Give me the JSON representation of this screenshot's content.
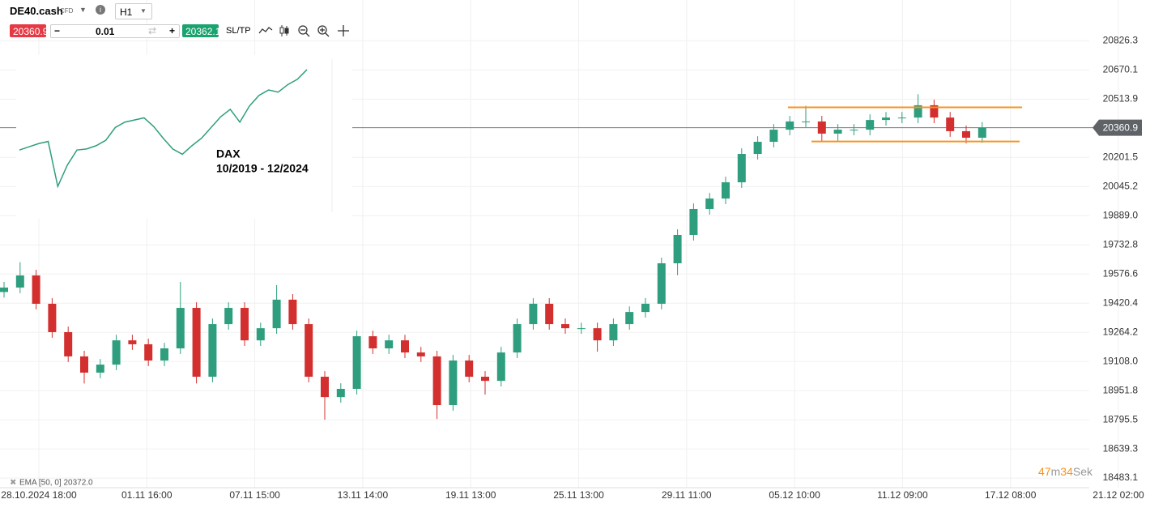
{
  "header": {
    "symbol": "DE40.cash",
    "kind": "CFD",
    "timeframe": "H1",
    "sell": "20360.9",
    "volume": "0.01",
    "buy": "20362.1",
    "sltp": "SL/TP"
  },
  "indicator": "EMA [50, 0] 20372.0",
  "timer": {
    "minutes": "47",
    "m": "m",
    "seconds": "34",
    "s": "Sek"
  },
  "inset": {
    "title": "DAX",
    "period": "10/2019 - 12/2024",
    "color": "#2e9e7e",
    "values": [
      12900,
      13200,
      13500,
      13700,
      9500,
      11500,
      12900,
      13000,
      13300,
      13800,
      15000,
      15500,
      15700,
      15900,
      15100,
      14000,
      13000,
      12500,
      13300,
      14000,
      15000,
      16000,
      16700,
      15500,
      17000,
      18000,
      18500,
      18300,
      19000,
      19500,
      20400
    ],
    "ylim": [
      8000,
      21000
    ]
  },
  "chart_data": {
    "type": "candlestick",
    "x_labels": [
      "28.10.2024 18:00",
      "01.11 16:00",
      "07.11 15:00",
      "13.11 14:00",
      "19.11 13:00",
      "25.11 13:00",
      "29.11 11:00",
      "05.12 10:00",
      "11.12 09:00",
      "17.12 08:00",
      "21.12 02:00"
    ],
    "open": [
      19480,
      19504,
      19569,
      19417,
      19265,
      19135,
      19048,
      19091,
      19221,
      19200,
      19113,
      19178,
      19395,
      19026,
      19308,
      19395,
      19221,
      19286,
      19439,
      19308,
      19026,
      18917,
      18961,
      19243,
      19178,
      19221,
      19156,
      19135,
      18874,
      19113,
      19026,
      19004,
      19156,
      19308,
      19417,
      19308,
      19286,
      19286,
      19221,
      19308,
      19373,
      19417,
      19634,
      19786,
      19925,
      19981,
      20068,
      20220,
      20285,
      20350,
      20394,
      20394,
      20329,
      20350,
      20350,
      20402,
      20415,
      20415,
      20481,
      20415,
      20342,
      20307
    ],
    "high": [
      19534,
      19640,
      19599,
      19447,
      19295,
      19165,
      19121,
      19251,
      19251,
      19230,
      19208,
      19534,
      19425,
      19338,
      19425,
      19425,
      19316,
      19517,
      19469,
      19338,
      19056,
      18991,
      19273,
      19273,
      19251,
      19251,
      19186,
      19165,
      19143,
      19143,
      19056,
      19186,
      19338,
      19447,
      19447,
      19338,
      19316,
      19316,
      19338,
      19403,
      19447,
      19664,
      19816,
      19955,
      20011,
      20098,
      20250,
      20315,
      20380,
      20424,
      20478,
      20424,
      20380,
      20380,
      20432,
      20445,
      20445,
      20540,
      20511,
      20445,
      20372,
      20391
    ],
    "low": [
      19450,
      19474,
      19387,
      19235,
      19105,
      18990,
      19018,
      19061,
      19170,
      19083,
      19083,
      19148,
      18990,
      18996,
      19278,
      19191,
      19191,
      19256,
      19278,
      18996,
      18796,
      18887,
      18931,
      19148,
      19148,
      19126,
      19105,
      18800,
      18844,
      18996,
      18930,
      18974,
      19126,
      19278,
      19278,
      19256,
      19256,
      19160,
      19191,
      19278,
      19343,
      19387,
      19570,
      19756,
      19895,
      19951,
      20038,
      20190,
      20255,
      20320,
      20364,
      20290,
      20290,
      20320,
      20320,
      20372,
      20385,
      20385,
      20385,
      20312,
      20277,
      20280
    ],
    "close": [
      19504,
      19569,
      19417,
      19265,
      19135,
      19048,
      19091,
      19221,
      19200,
      19113,
      19178,
      19395,
      19026,
      19308,
      19395,
      19221,
      19286,
      19439,
      19308,
      19026,
      18917,
      18961,
      19243,
      19178,
      19221,
      19156,
      19135,
      18874,
      19113,
      19026,
      19004,
      19156,
      19308,
      19417,
      19308,
      19286,
      19286,
      19221,
      19308,
      19373,
      19417,
      19634,
      19786,
      19925,
      19981,
      20068,
      20220,
      20285,
      20350,
      20394,
      20394,
      20329,
      20350,
      20350,
      20402,
      20415,
      20415,
      20481,
      20415,
      20342,
      20307,
      20360.9
    ],
    "up_color": "#2e9e7e",
    "down_color": "#d32f2f",
    "current_price": 20360.9,
    "levels": [
      20470,
      20287
    ],
    "level_color": "#f7931e",
    "ylim": [
      18440,
      21045
    ],
    "yticks": [
      20826.3,
      20670.1,
      20513.9,
      20201.5,
      20045.2,
      {
        "value": 19889.0,
        "label": "19889.0"
      },
      19732.8,
      19576.6,
      19420.4,
      19264.2,
      {
        "value": 19108.0,
        "label": "19108.0"
      },
      18951.8,
      18795.5,
      18639.3,
      18483.1
    ],
    "grid": true
  }
}
